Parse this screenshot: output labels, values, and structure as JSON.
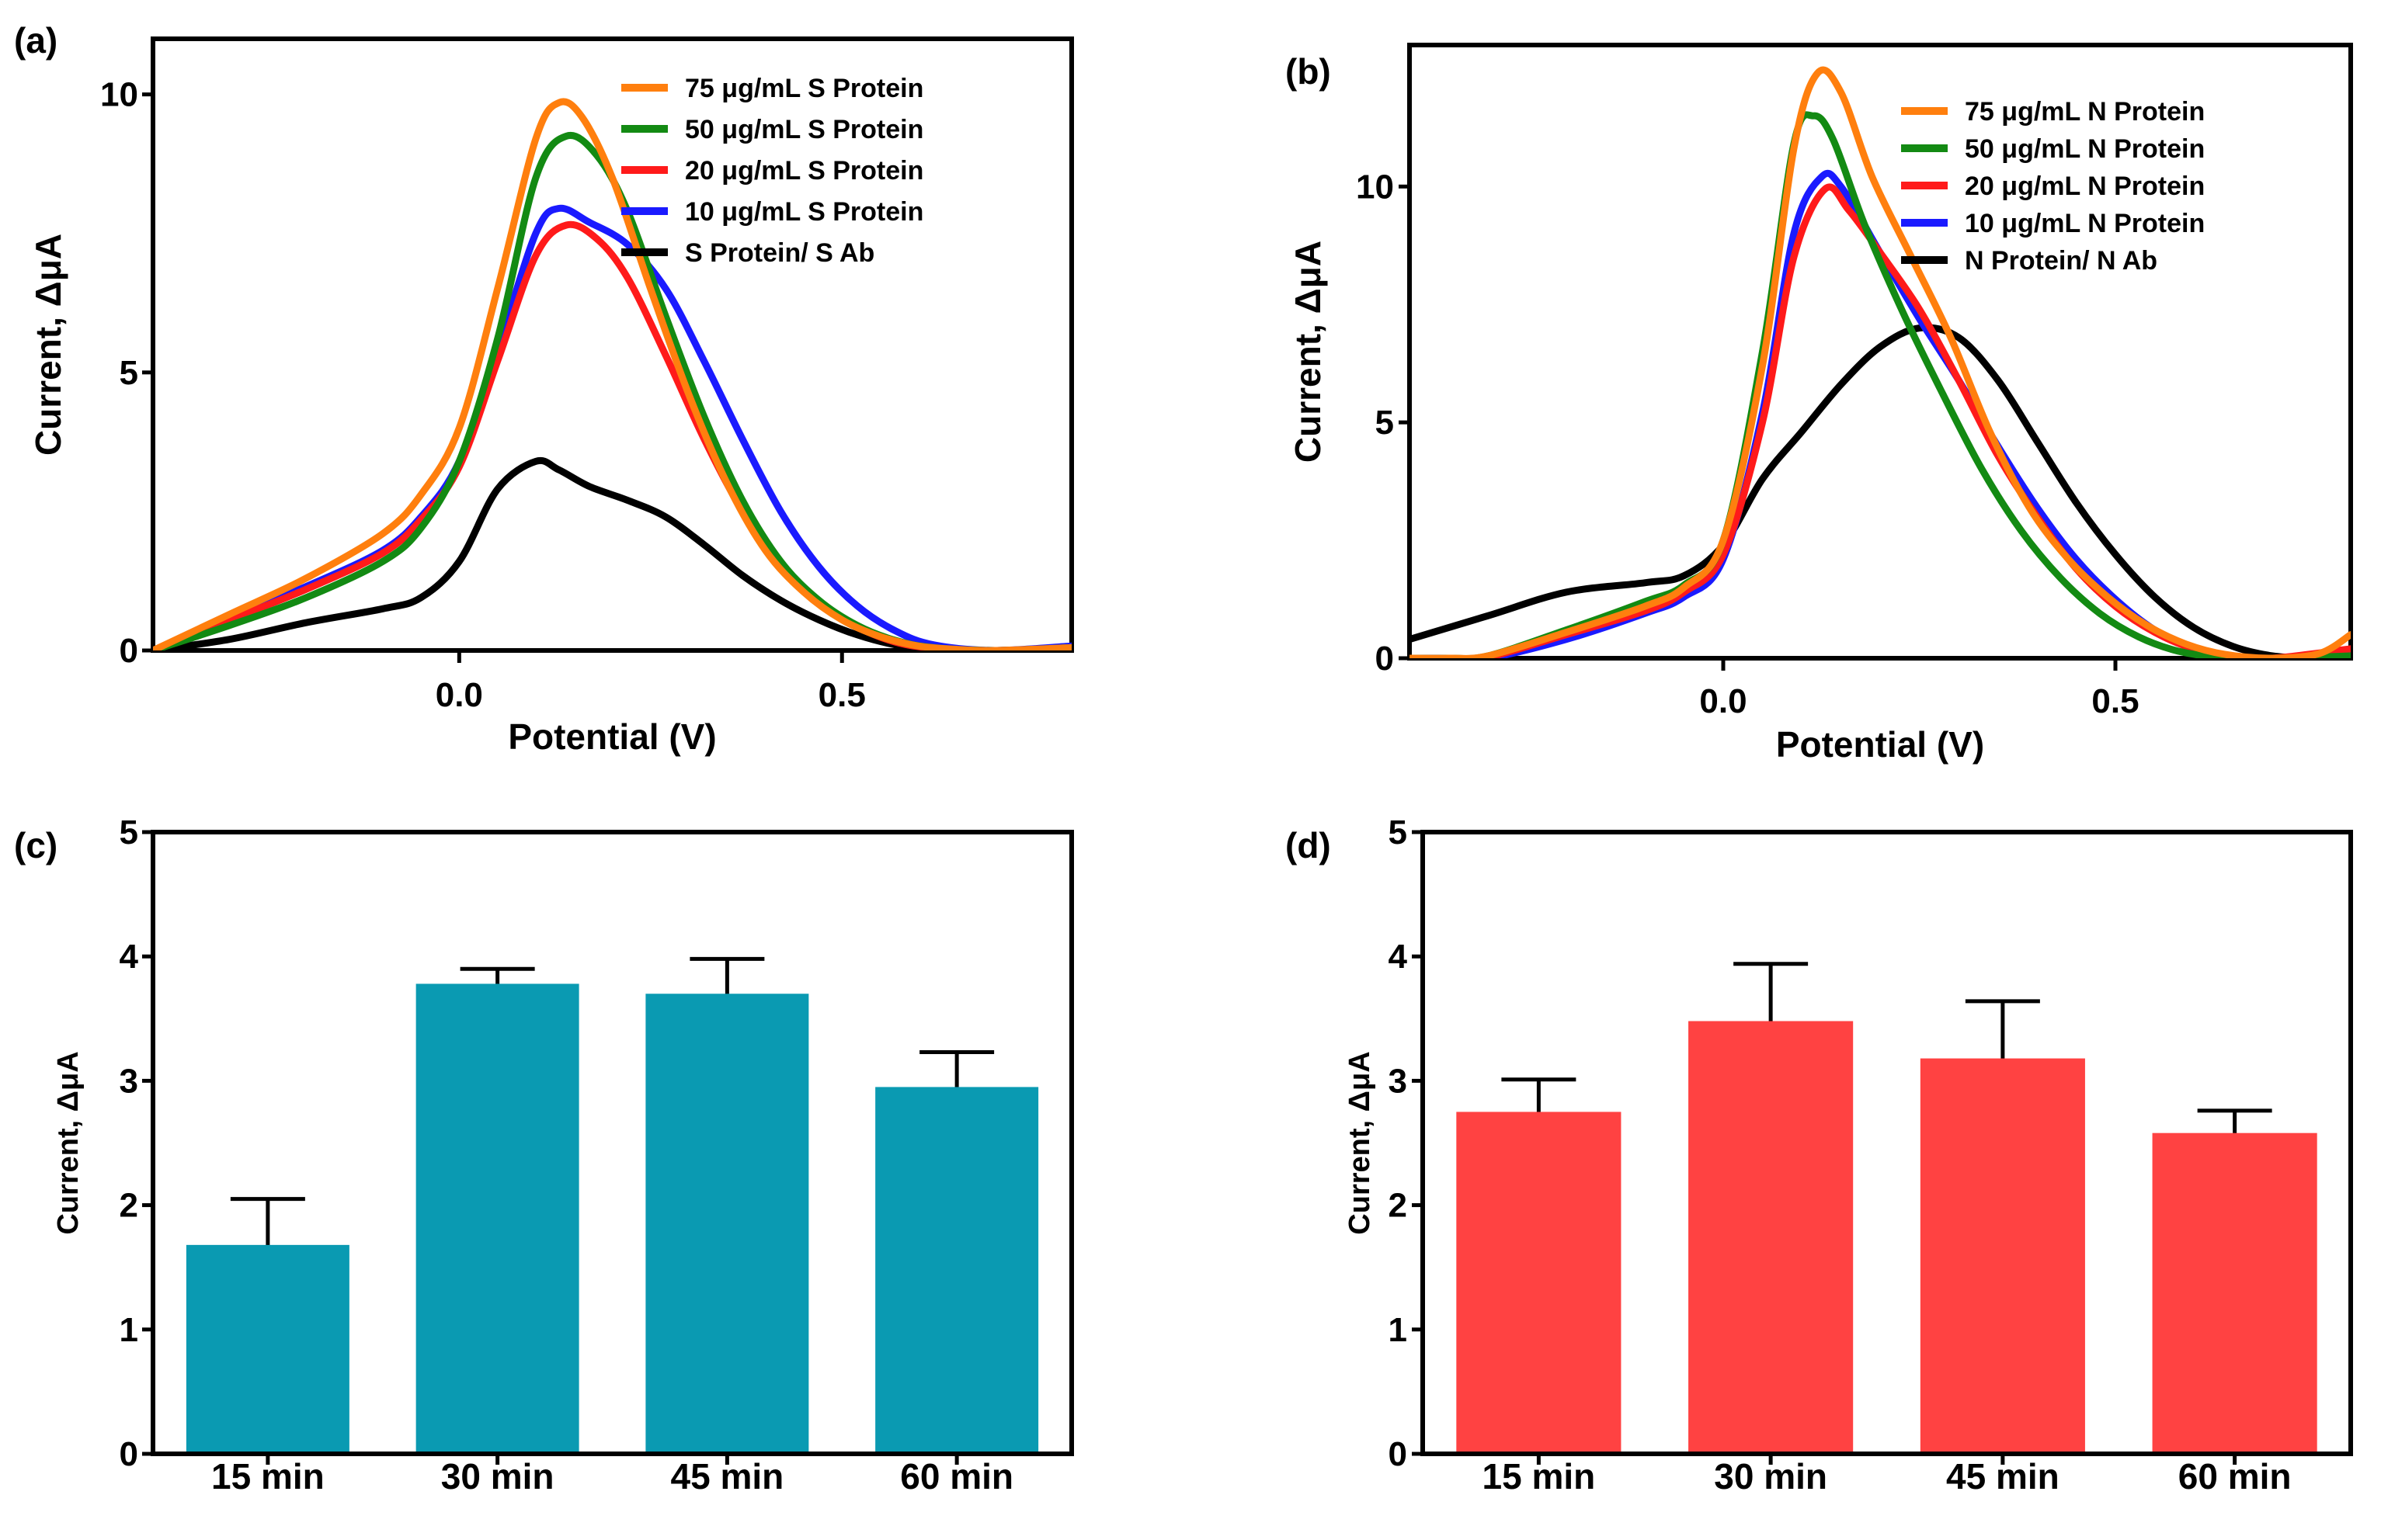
{
  "panel_labels": [
    "(a)",
    "(b)",
    "(c)",
    "(d)"
  ],
  "colors": {
    "orange": "#ff7f0e",
    "green": "#138a13",
    "red": "#ff1a1a",
    "blue": "#1a1aff",
    "black": "#000000",
    "teal_bar": "#0a9ab2",
    "red_bar": "#ff4242"
  },
  "chart_data": [
    {
      "type": "line",
      "panel": "(a)",
      "xlabel": "Potential (V)",
      "ylabel": "Current, ΔμA",
      "xlim": [
        -0.4,
        0.8
      ],
      "ylim": [
        0,
        11
      ],
      "xticks": [
        0.0,
        0.5
      ],
      "xtick_labels": [
        "0.0",
        "0.5"
      ],
      "yticks": [
        0,
        5,
        10
      ],
      "ytick_labels": [
        "0",
        "5",
        "10"
      ],
      "legend_position": "top-right",
      "series": [
        {
          "name": "75 μg/mL S Protein",
          "color": "orange",
          "x": [
            -0.4,
            -0.3,
            -0.2,
            -0.1,
            -0.05,
            0.0,
            0.05,
            0.1,
            0.13,
            0.16,
            0.2,
            0.25,
            0.3,
            0.35,
            0.4,
            0.45,
            0.5,
            0.55,
            0.6,
            0.65,
            0.7,
            0.8
          ],
          "y": [
            0,
            0.65,
            1.3,
            2.1,
            2.8,
            4.0,
            6.5,
            9.2,
            9.85,
            9.6,
            8.5,
            6.5,
            4.6,
            3.0,
            1.8,
            1.05,
            0.55,
            0.25,
            0.08,
            0.02,
            0.0,
            0.05
          ]
        },
        {
          "name": "50 μg/mL S Protein",
          "color": "green",
          "x": [
            -0.4,
            -0.3,
            -0.2,
            -0.1,
            -0.05,
            0.0,
            0.05,
            0.1,
            0.14,
            0.18,
            0.22,
            0.27,
            0.32,
            0.37,
            0.42,
            0.47,
            0.52,
            0.57,
            0.62,
            0.7,
            0.8
          ],
          "y": [
            0,
            0.45,
            0.95,
            1.6,
            2.2,
            3.4,
            5.6,
            8.5,
            9.25,
            8.9,
            7.9,
            6.0,
            4.2,
            2.7,
            1.6,
            0.9,
            0.45,
            0.18,
            0.05,
            0.0,
            0.05
          ]
        },
        {
          "name": "20 μg/mL S Protein",
          "color": "red",
          "x": [
            -0.4,
            -0.3,
            -0.2,
            -0.1,
            -0.05,
            0.0,
            0.05,
            0.1,
            0.14,
            0.18,
            0.22,
            0.27,
            0.32,
            0.37,
            0.42,
            0.47,
            0.52,
            0.57,
            0.62,
            0.7,
            0.8
          ],
          "y": [
            0,
            0.55,
            1.1,
            1.75,
            2.35,
            3.3,
            5.2,
            7.1,
            7.65,
            7.4,
            6.7,
            5.3,
            3.8,
            2.5,
            1.5,
            0.85,
            0.42,
            0.15,
            0.04,
            0.0,
            0.05
          ]
        },
        {
          "name": "10 μg/mL S Protein",
          "color": "blue",
          "x": [
            -0.4,
            -0.3,
            -0.2,
            -0.1,
            -0.05,
            0.0,
            0.05,
            0.1,
            0.13,
            0.17,
            0.22,
            0.27,
            0.32,
            0.37,
            0.42,
            0.47,
            0.52,
            0.57,
            0.62,
            0.7,
            0.8
          ],
          "y": [
            0,
            0.6,
            1.15,
            1.8,
            2.4,
            3.4,
            5.4,
            7.5,
            7.95,
            7.7,
            7.3,
            6.5,
            5.2,
            3.8,
            2.5,
            1.5,
            0.8,
            0.35,
            0.1,
            0.0,
            0.08
          ]
        },
        {
          "name": "S Protein/ S Ab",
          "color": "black",
          "x": [
            -0.4,
            -0.3,
            -0.2,
            -0.1,
            -0.05,
            0.0,
            0.05,
            0.1,
            0.13,
            0.17,
            0.22,
            0.27,
            0.32,
            0.37,
            0.42,
            0.47,
            0.52,
            0.57,
            0.62,
            0.7,
            0.8
          ],
          "y": [
            0,
            0.2,
            0.5,
            0.75,
            0.95,
            1.6,
            2.9,
            3.4,
            3.25,
            2.95,
            2.7,
            2.4,
            1.9,
            1.35,
            0.9,
            0.55,
            0.28,
            0.1,
            0.02,
            0.0,
            0.03
          ]
        }
      ]
    },
    {
      "type": "line",
      "panel": "(b)",
      "xlabel": "Potential (V)",
      "ylabel": "Current, ΔμA",
      "xlim": [
        -0.4,
        0.8
      ],
      "ylim": [
        0,
        13
      ],
      "xticks": [
        0.0,
        0.5
      ],
      "xtick_labels": [
        "0.0",
        "0.5"
      ],
      "yticks": [
        0,
        5,
        10
      ],
      "ytick_labels": [
        "0",
        "5",
        "10"
      ],
      "legend_position": "top-right",
      "series": [
        {
          "name": "75 μg/mL N Protein",
          "color": "orange",
          "x": [
            -0.4,
            -0.35,
            -0.3,
            -0.2,
            -0.1,
            -0.05,
            0.0,
            0.05,
            0.09,
            0.12,
            0.15,
            0.19,
            0.24,
            0.29,
            0.34,
            0.39,
            0.44,
            0.49,
            0.54,
            0.59,
            0.64,
            0.7,
            0.76,
            0.8
          ],
          "y": [
            0,
            0,
            0.05,
            0.55,
            1.1,
            1.5,
            2.5,
            6.2,
            10.8,
            12.4,
            12.0,
            10.2,
            8.5,
            6.8,
            4.8,
            3.2,
            2.1,
            1.3,
            0.7,
            0.3,
            0.08,
            0.0,
            0.1,
            0.5
          ]
        },
        {
          "name": "50 μg/mL N Protein",
          "color": "green",
          "x": [
            -0.4,
            -0.35,
            -0.3,
            -0.2,
            -0.1,
            -0.05,
            0.0,
            0.05,
            0.09,
            0.115,
            0.14,
            0.18,
            0.23,
            0.28,
            0.33,
            0.38,
            0.43,
            0.48,
            0.53,
            0.58,
            0.63,
            0.7,
            0.8
          ],
          "y": [
            0,
            0,
            0.05,
            0.6,
            1.2,
            1.55,
            2.5,
            6.5,
            10.9,
            11.5,
            11.0,
            9.2,
            7.3,
            5.6,
            4.0,
            2.7,
            1.7,
            0.95,
            0.45,
            0.15,
            0.03,
            0.0,
            0.05
          ]
        },
        {
          "name": "20 μg/mL N Protein",
          "color": "red",
          "x": [
            -0.4,
            -0.35,
            -0.3,
            -0.2,
            -0.1,
            -0.05,
            0.0,
            0.05,
            0.09,
            0.13,
            0.16,
            0.2,
            0.25,
            0.3,
            0.35,
            0.4,
            0.45,
            0.5,
            0.55,
            0.6,
            0.65,
            0.7,
            0.8
          ],
          "y": [
            0,
            0,
            0.02,
            0.5,
            1.0,
            1.4,
            2.2,
            5.0,
            8.5,
            9.95,
            9.5,
            8.6,
            7.4,
            5.9,
            4.3,
            3.0,
            1.9,
            1.1,
            0.55,
            0.2,
            0.05,
            0.0,
            0.2
          ]
        },
        {
          "name": "10 μg/mL N Protein",
          "color": "blue",
          "x": [
            -0.4,
            -0.35,
            -0.3,
            -0.2,
            -0.1,
            -0.05,
            0.0,
            0.05,
            0.09,
            0.125,
            0.15,
            0.2,
            0.25,
            0.3,
            0.35,
            0.4,
            0.45,
            0.5,
            0.55,
            0.6,
            0.65,
            0.7,
            0.8
          ],
          "y": [
            0,
            0,
            0,
            0.4,
            0.95,
            1.3,
            2.1,
            5.2,
            9.0,
            10.2,
            10.0,
            8.6,
            7.2,
            5.9,
            4.5,
            3.2,
            2.1,
            1.25,
            0.6,
            0.2,
            0.05,
            0.0,
            0.1
          ]
        },
        {
          "name": "N Protein/ N Ab",
          "color": "black",
          "x": [
            -0.4,
            -0.3,
            -0.2,
            -0.1,
            -0.05,
            0.0,
            0.05,
            0.1,
            0.15,
            0.2,
            0.25,
            0.3,
            0.35,
            0.4,
            0.45,
            0.5,
            0.55,
            0.6,
            0.65,
            0.7,
            0.75,
            0.8
          ],
          "y": [
            0.4,
            0.9,
            1.4,
            1.6,
            1.75,
            2.4,
            3.8,
            4.8,
            5.8,
            6.6,
            7.0,
            6.8,
            5.9,
            4.6,
            3.3,
            2.2,
            1.3,
            0.65,
            0.25,
            0.05,
            0.0,
            0.0
          ]
        }
      ]
    },
    {
      "type": "bar",
      "panel": "(c)",
      "categories": [
        "15 min",
        "30 min",
        "45 min",
        "60 min"
      ],
      "values": [
        1.68,
        3.78,
        3.7,
        2.95
      ],
      "errors": [
        0.37,
        0.12,
        0.28,
        0.28
      ],
      "color": "teal_bar",
      "xlabel": "",
      "ylabel": "Current, ΔμA",
      "ylim": [
        0,
        5
      ],
      "yticks": [
        0,
        1,
        2,
        3,
        4,
        5
      ],
      "ytick_labels": [
        "0",
        "1",
        "2",
        "3",
        "4",
        "5"
      ]
    },
    {
      "type": "bar",
      "panel": "(d)",
      "categories": [
        "15 min",
        "30 min",
        "45 min",
        "60 min"
      ],
      "values": [
        2.75,
        3.48,
        3.18,
        2.58
      ],
      "errors": [
        0.26,
        0.46,
        0.46,
        0.18
      ],
      "color": "red_bar",
      "xlabel": "",
      "ylabel": "Current, ΔμA",
      "ylim": [
        0,
        5
      ],
      "yticks": [
        0,
        1,
        2,
        3,
        4,
        5
      ],
      "ytick_labels": [
        "0",
        "1",
        "2",
        "3",
        "4",
        "5"
      ]
    }
  ]
}
